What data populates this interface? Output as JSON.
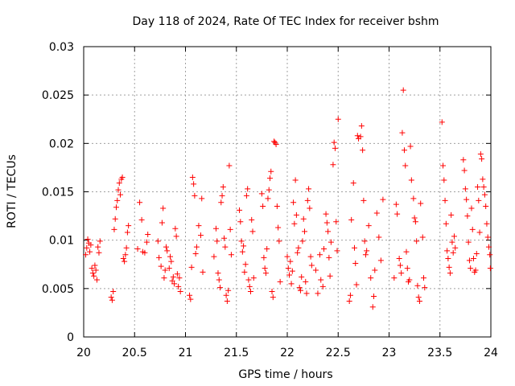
{
  "chart_data": {
    "type": "scatter",
    "title": "Day 118 of 2024, Rate Of TEC Index for receiver bshm",
    "xlabel": "GPS time / hours",
    "ylabel": "ROTI / TECUs",
    "xlim": [
      20,
      24
    ],
    "ylim": [
      0,
      0.03
    ],
    "grid": true,
    "marker": "+",
    "color": "#ff0000",
    "x_ticks": [
      "20",
      "20.5",
      "21",
      "21.5",
      "22",
      "22.5",
      "23",
      "23.5",
      "24"
    ],
    "y_ticks": [
      "0",
      "0.005",
      "0.01",
      "0.015",
      "0.02",
      "0.025",
      "0.03"
    ],
    "series": [
      {
        "name": "ROTI",
        "points": [
          [
            20.02,
            0.0085
          ],
          [
            20.03,
            0.0092
          ],
          [
            20.04,
            0.0101
          ],
          [
            20.05,
            0.0097
          ],
          [
            20.06,
            0.0088
          ],
          [
            20.07,
            0.0095
          ],
          [
            20.08,
            0.0071
          ],
          [
            20.09,
            0.0066
          ],
          [
            20.1,
            0.0063
          ],
          [
            20.11,
            0.0074
          ],
          [
            20.12,
            0.0069
          ],
          [
            20.13,
            0.0059
          ],
          [
            20.14,
            0.0093
          ],
          [
            20.15,
            0.0087
          ],
          [
            20.16,
            0.0099
          ],
          [
            20.27,
            0.0041
          ],
          [
            20.28,
            0.0038
          ],
          [
            20.29,
            0.0047
          ],
          [
            20.3,
            0.0111
          ],
          [
            20.31,
            0.0122
          ],
          [
            20.32,
            0.0134
          ],
          [
            20.33,
            0.0141
          ],
          [
            20.34,
            0.0152
          ],
          [
            20.35,
            0.0159
          ],
          [
            20.36,
            0.0147
          ],
          [
            20.37,
            0.0163
          ],
          [
            20.38,
            0.0165
          ],
          [
            20.39,
            0.0081
          ],
          [
            20.4,
            0.0078
          ],
          [
            20.41,
            0.0085
          ],
          [
            20.42,
            0.0092
          ],
          [
            20.43,
            0.0108
          ],
          [
            20.44,
            0.0115
          ],
          [
            20.53,
            0.0091
          ],
          [
            20.55,
            0.0139
          ],
          [
            20.57,
            0.0121
          ],
          [
            20.58,
            0.0088
          ],
          [
            20.6,
            0.0087
          ],
          [
            20.62,
            0.0098
          ],
          [
            20.63,
            0.0106
          ],
          [
            20.73,
            0.0099
          ],
          [
            20.74,
            0.0082
          ],
          [
            20.76,
            0.0073
          ],
          [
            20.77,
            0.0118
          ],
          [
            20.78,
            0.0133
          ],
          [
            20.79,
            0.0061
          ],
          [
            20.8,
            0.0069
          ],
          [
            20.81,
            0.0093
          ],
          [
            20.82,
            0.0089
          ],
          [
            20.84,
            0.0071
          ],
          [
            20.85,
            0.0083
          ],
          [
            20.86,
            0.0078
          ],
          [
            20.87,
            0.0058
          ],
          [
            20.88,
            0.0062
          ],
          [
            20.89,
            0.0055
          ],
          [
            20.9,
            0.0112
          ],
          [
            20.91,
            0.0104
          ],
          [
            20.92,
            0.0065
          ],
          [
            20.93,
            0.0052
          ],
          [
            20.94,
            0.0061
          ],
          [
            20.95,
            0.0047
          ],
          [
            21.04,
            0.0043
          ],
          [
            21.05,
            0.0039
          ],
          [
            21.06,
            0.0072
          ],
          [
            21.07,
            0.0165
          ],
          [
            21.08,
            0.0158
          ],
          [
            21.09,
            0.0146
          ],
          [
            21.1,
            0.0086
          ],
          [
            21.11,
            0.0093
          ],
          [
            21.13,
            0.0115
          ],
          [
            21.15,
            0.0105
          ],
          [
            21.16,
            0.0143
          ],
          [
            21.17,
            0.0067
          ],
          [
            21.28,
            0.0083
          ],
          [
            21.3,
            0.0112
          ],
          [
            21.31,
            0.0099
          ],
          [
            21.32,
            0.0066
          ],
          [
            21.33,
            0.0059
          ],
          [
            21.34,
            0.0051
          ],
          [
            21.35,
            0.0139
          ],
          [
            21.36,
            0.0146
          ],
          [
            21.37,
            0.0155
          ],
          [
            21.38,
            0.0102
          ],
          [
            21.39,
            0.0093
          ],
          [
            21.4,
            0.0043
          ],
          [
            21.41,
            0.0037
          ],
          [
            21.42,
            0.0048
          ],
          [
            21.43,
            0.0177
          ],
          [
            21.44,
            0.0111
          ],
          [
            21.45,
            0.0085
          ],
          [
            21.53,
            0.0131
          ],
          [
            21.54,
            0.0119
          ],
          [
            21.55,
            0.0099
          ],
          [
            21.56,
            0.0088
          ],
          [
            21.57,
            0.0094
          ],
          [
            21.58,
            0.0067
          ],
          [
            21.59,
            0.0075
          ],
          [
            21.6,
            0.0146
          ],
          [
            21.61,
            0.0153
          ],
          [
            21.62,
            0.0059
          ],
          [
            21.63,
            0.0052
          ],
          [
            21.64,
            0.0047
          ],
          [
            21.65,
            0.0121
          ],
          [
            21.66,
            0.0109
          ],
          [
            21.67,
            0.0061
          ],
          [
            21.75,
            0.0148
          ],
          [
            21.76,
            0.0135
          ],
          [
            21.77,
            0.0082
          ],
          [
            21.78,
            0.0071
          ],
          [
            21.79,
            0.0066
          ],
          [
            21.8,
            0.0091
          ],
          [
            21.81,
            0.0143
          ],
          [
            21.82,
            0.0152
          ],
          [
            21.83,
            0.0164
          ],
          [
            21.84,
            0.0171
          ],
          [
            21.85,
            0.0047
          ],
          [
            21.86,
            0.0041
          ],
          [
            21.87,
            0.0202
          ],
          [
            21.88,
            0.0201
          ],
          [
            21.89,
            0.0199
          ],
          [
            21.9,
            0.0135
          ],
          [
            21.91,
            0.0113
          ],
          [
            21.92,
            0.0099
          ],
          [
            21.93,
            0.0057
          ],
          [
            22.0,
            0.0083
          ],
          [
            22.01,
            0.0071
          ],
          [
            22.02,
            0.0064
          ],
          [
            22.03,
            0.0078
          ],
          [
            22.04,
            0.0055
          ],
          [
            22.05,
            0.0068
          ],
          [
            22.06,
            0.0139
          ],
          [
            22.07,
            0.0117
          ],
          [
            22.08,
            0.0162
          ],
          [
            22.09,
            0.0126
          ],
          [
            22.1,
            0.0087
          ],
          [
            22.11,
            0.0092
          ],
          [
            22.12,
            0.0051
          ],
          [
            22.13,
            0.0048
          ],
          [
            22.14,
            0.0062
          ],
          [
            22.15,
            0.0099
          ],
          [
            22.16,
            0.0122
          ],
          [
            22.17,
            0.0109
          ],
          [
            22.18,
            0.0057
          ],
          [
            22.19,
            0.0045
          ],
          [
            22.2,
            0.0141
          ],
          [
            22.21,
            0.0153
          ],
          [
            22.22,
            0.0133
          ],
          [
            22.23,
            0.0083
          ],
          [
            22.24,
            0.0074
          ],
          [
            22.28,
            0.0069
          ],
          [
            22.3,
            0.0045
          ],
          [
            22.32,
            0.0085
          ],
          [
            22.33,
            0.0059
          ],
          [
            22.35,
            0.0052
          ],
          [
            22.36,
            0.0091
          ],
          [
            22.38,
            0.0127
          ],
          [
            22.39,
            0.0118
          ],
          [
            22.4,
            0.0109
          ],
          [
            22.41,
            0.0082
          ],
          [
            22.42,
            0.0063
          ],
          [
            22.43,
            0.0098
          ],
          [
            22.45,
            0.0178
          ],
          [
            22.46,
            0.0201
          ],
          [
            22.47,
            0.0195
          ],
          [
            22.48,
            0.0119
          ],
          [
            22.49,
            0.0089
          ],
          [
            22.5,
            0.0225
          ],
          [
            22.61,
            0.0037
          ],
          [
            22.62,
            0.0043
          ],
          [
            22.63,
            0.0121
          ],
          [
            22.65,
            0.0159
          ],
          [
            22.66,
            0.0092
          ],
          [
            22.67,
            0.0076
          ],
          [
            22.68,
            0.0054
          ],
          [
            22.69,
            0.0208
          ],
          [
            22.7,
            0.0205
          ],
          [
            22.72,
            0.0207
          ],
          [
            22.73,
            0.0218
          ],
          [
            22.74,
            0.0193
          ],
          [
            22.75,
            0.0141
          ],
          [
            22.76,
            0.0099
          ],
          [
            22.77,
            0.0085
          ],
          [
            22.78,
            0.0089
          ],
          [
            22.8,
            0.0115
          ],
          [
            22.82,
            0.0061
          ],
          [
            22.84,
            0.0031
          ],
          [
            22.85,
            0.0042
          ],
          [
            22.86,
            0.0069
          ],
          [
            22.88,
            0.0128
          ],
          [
            22.9,
            0.0103
          ],
          [
            22.92,
            0.0079
          ],
          [
            22.94,
            0.0142
          ],
          [
            23.05,
            0.0061
          ],
          [
            23.07,
            0.0137
          ],
          [
            23.08,
            0.0127
          ],
          [
            23.1,
            0.0081
          ],
          [
            23.11,
            0.0074
          ],
          [
            23.12,
            0.0066
          ],
          [
            23.13,
            0.0211
          ],
          [
            23.14,
            0.0255
          ],
          [
            23.15,
            0.0193
          ],
          [
            23.16,
            0.0177
          ],
          [
            23.17,
            0.0088
          ],
          [
            23.18,
            0.0071
          ],
          [
            23.19,
            0.0057
          ],
          [
            23.2,
            0.0059
          ],
          [
            23.21,
            0.0197
          ],
          [
            23.22,
            0.0162
          ],
          [
            23.24,
            0.0143
          ],
          [
            23.25,
            0.0123
          ],
          [
            23.26,
            0.0119
          ],
          [
            23.27,
            0.0099
          ],
          [
            23.28,
            0.0053
          ],
          [
            23.29,
            0.0041
          ],
          [
            23.3,
            0.0037
          ],
          [
            23.31,
            0.0138
          ],
          [
            23.33,
            0.0103
          ],
          [
            23.34,
            0.0061
          ],
          [
            23.35,
            0.0051
          ],
          [
            23.52,
            0.0222
          ],
          [
            23.53,
            0.0177
          ],
          [
            23.54,
            0.0162
          ],
          [
            23.55,
            0.0141
          ],
          [
            23.56,
            0.0117
          ],
          [
            23.57,
            0.0089
          ],
          [
            23.58,
            0.0081
          ],
          [
            23.59,
            0.0072
          ],
          [
            23.6,
            0.0066
          ],
          [
            23.61,
            0.0126
          ],
          [
            23.62,
            0.0098
          ],
          [
            23.63,
            0.0087
          ],
          [
            23.64,
            0.0104
          ],
          [
            23.65,
            0.0092
          ],
          [
            23.73,
            0.0183
          ],
          [
            23.74,
            0.0172
          ],
          [
            23.75,
            0.0153
          ],
          [
            23.76,
            0.0142
          ],
          [
            23.77,
            0.0125
          ],
          [
            23.78,
            0.0098
          ],
          [
            23.79,
            0.0079
          ],
          [
            23.8,
            0.0071
          ],
          [
            23.81,
            0.0133
          ],
          [
            23.82,
            0.0111
          ],
          [
            23.83,
            0.0081
          ],
          [
            23.84,
            0.0067
          ],
          [
            23.85,
            0.0069
          ],
          [
            23.86,
            0.0086
          ],
          [
            23.87,
            0.0155
          ],
          [
            23.88,
            0.0141
          ],
          [
            23.89,
            0.0108
          ],
          [
            23.9,
            0.0189
          ],
          [
            23.91,
            0.0184
          ],
          [
            23.92,
            0.0163
          ],
          [
            23.93,
            0.0155
          ],
          [
            23.94,
            0.0147
          ],
          [
            23.95,
            0.0135
          ],
          [
            23.96,
            0.0117
          ],
          [
            23.97,
            0.0103
          ],
          [
            23.98,
            0.0093
          ],
          [
            23.99,
            0.0085
          ],
          [
            23.995,
            0.0071
          ]
        ]
      }
    ]
  }
}
